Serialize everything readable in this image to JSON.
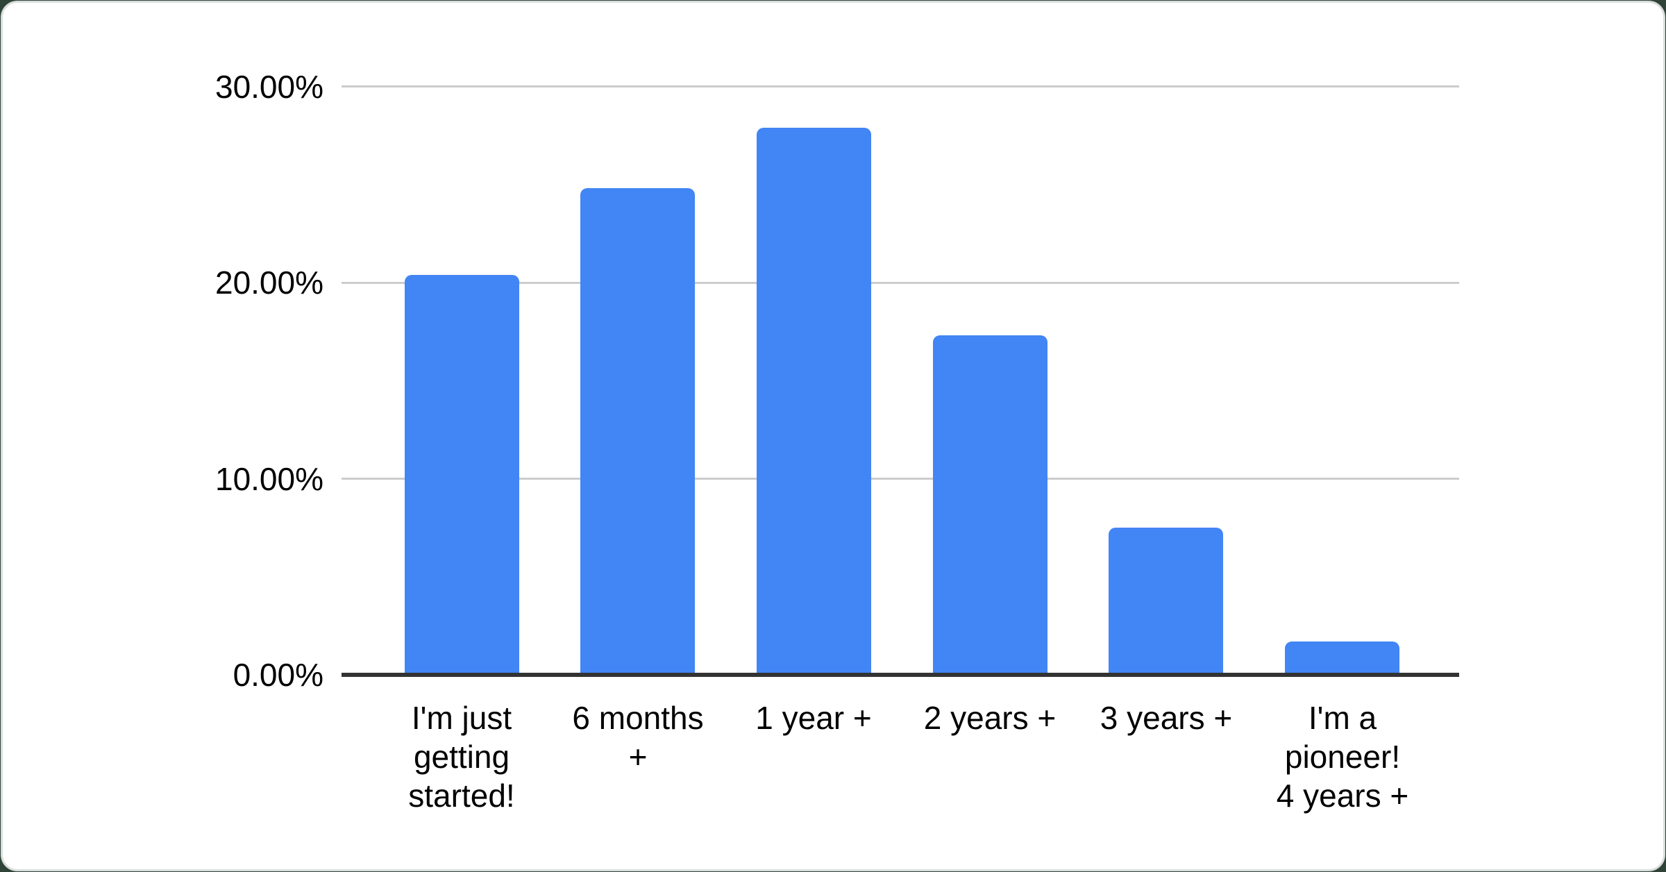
{
  "chart_data": {
    "type": "bar",
    "title": "",
    "xlabel": "",
    "ylabel": "",
    "categories": [
      "I'm just getting started!",
      "6 months +",
      "1 year +",
      "2 years +",
      "3 years +",
      "I'm a pioneer! 4 years +"
    ],
    "category_label_lines": [
      [
        "I'm just",
        "getting",
        "started!"
      ],
      [
        "6 months",
        "+"
      ],
      [
        "1 year +"
      ],
      [
        "2 years +"
      ],
      [
        "3 years +"
      ],
      [
        "I'm a",
        "pioneer!",
        "4 years +"
      ]
    ],
    "values": [
      20.4,
      24.8,
      27.9,
      17.3,
      7.5,
      1.7
    ],
    "unit": "%",
    "ylim": [
      0,
      30
    ],
    "y_ticks": [
      0,
      10,
      20,
      30
    ],
    "y_tick_labels": [
      "0.00%",
      "10.00%",
      "20.00%",
      "30.00%"
    ],
    "grid": true,
    "legend": "none"
  },
  "colors": {
    "bar": "#4285f4",
    "gridline": "#cccccc",
    "axis_line": "#333333",
    "label_text": "#000000",
    "card_background": "#ffffff",
    "card_border": "#d9dedb",
    "page_background": "#2f4339"
  }
}
